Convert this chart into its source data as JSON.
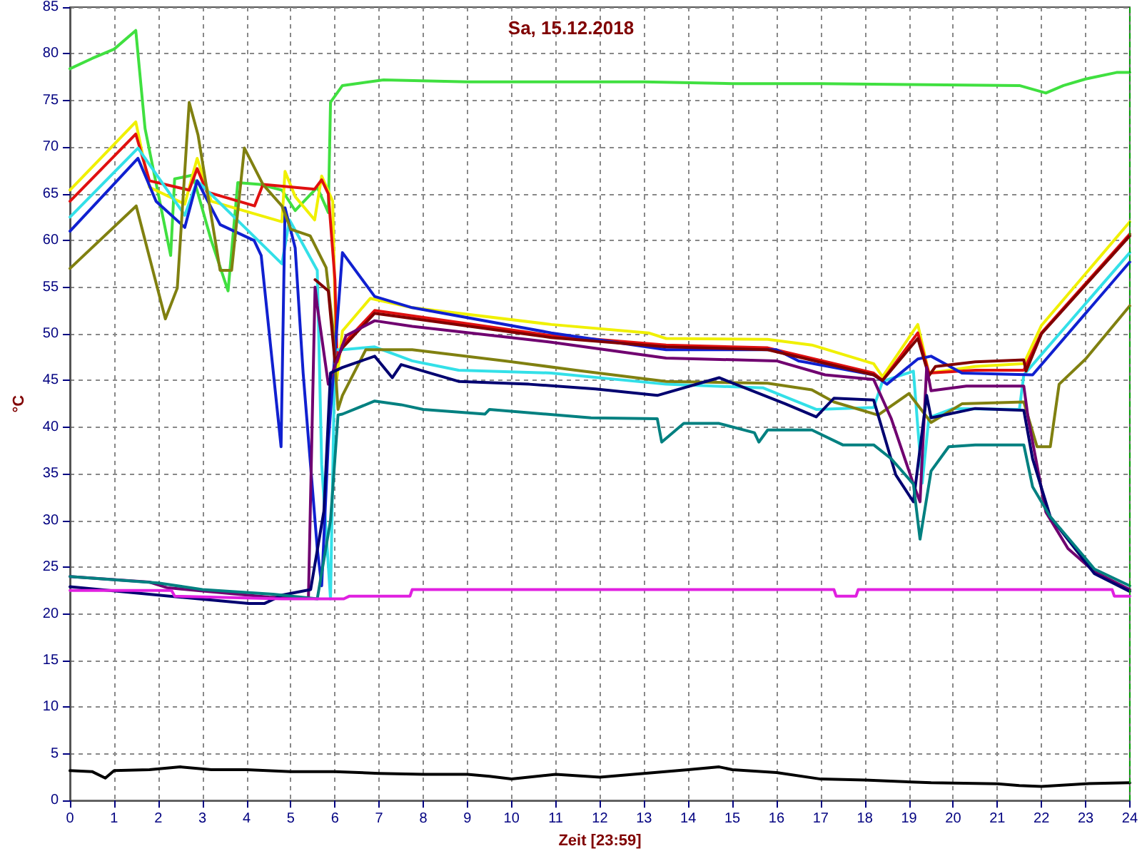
{
  "chart_data": {
    "type": "line",
    "title": "Sa, 15.12.2018",
    "xlabel": "Zeit [23:59]",
    "ylabel": "°C",
    "xlim": [
      0,
      24
    ],
    "xticks": [
      0,
      1,
      2,
      3,
      4,
      5,
      6,
      7,
      8,
      9,
      10,
      11,
      12,
      13,
      14,
      15,
      16,
      17,
      18,
      19,
      20,
      21,
      22,
      23,
      24
    ],
    "ylim": [
      0,
      85
    ],
    "yticks": [
      0,
      5,
      10,
      15,
      20,
      25,
      30,
      35,
      40,
      45,
      50,
      55,
      60,
      65,
      70,
      75,
      80,
      85
    ],
    "grid": true,
    "marker": "none",
    "line_style": "solid",
    "ref_lines": [
      {
        "axis": "x",
        "value": 24,
        "color": "#00a000",
        "line_style": "dashed"
      }
    ],
    "series": [
      {
        "color": "#40e040",
        "x": [
          0,
          0.5,
          1,
          1.49,
          1.7,
          2.28,
          2.37,
          2.78,
          3.2,
          3.58,
          3.8,
          4.3,
          4.8,
          5.1,
          5.6,
          5.85,
          5.9,
          6.17,
          7.1,
          9,
          11,
          13,
          15,
          17,
          19,
          21.5,
          22.1,
          22.5,
          23,
          23.7,
          24
        ],
        "values": [
          78.4,
          79.5,
          80.5,
          82.5,
          72,
          58.4,
          66.6,
          67,
          60,
          54.6,
          66.2,
          66,
          65.4,
          63.2,
          65.7,
          63,
          74.8,
          76.6,
          77.2,
          77,
          77,
          77,
          76.8,
          76.8,
          76.7,
          76.6,
          75.8,
          76.6,
          77.3,
          78,
          78
        ]
      },
      {
        "color": "#f0f000",
        "x": [
          0,
          1.49,
          1.8,
          2.6,
          2.88,
          3.2,
          4.8,
          4.87,
          5.1,
          5.54,
          5.7,
          5.95,
          6.04,
          6.17,
          6.8,
          7.75,
          10.9,
          13.1,
          13.5,
          15.8,
          16.8,
          18.2,
          18.4,
          19.2,
          19.45,
          20.5,
          21.6,
          22,
          24
        ],
        "values": [
          65.4,
          72.7,
          65.7,
          63.9,
          68.8,
          64.2,
          62,
          67.4,
          64.7,
          62.2,
          66.9,
          64.2,
          45,
          50.3,
          53.8,
          52.8,
          51,
          50.1,
          49.5,
          49.4,
          48.8,
          46.8,
          45.4,
          51,
          45.8,
          46.5,
          46.8,
          50.9,
          62
        ]
      },
      {
        "color": "#e01010",
        "x": [
          0,
          1.49,
          1.8,
          2.7,
          2.88,
          3.1,
          4.18,
          4.37,
          5.54,
          5.7,
          5.85,
          6,
          6.05,
          6.17,
          6.9,
          10.9,
          13.5,
          15.8,
          18.2,
          18.4,
          19.2,
          19.45,
          20.5,
          21.6,
          22,
          24
        ],
        "values": [
          64.2,
          71.4,
          66.4,
          65.4,
          67.7,
          65.2,
          63.7,
          66,
          65.5,
          66.5,
          65,
          55.8,
          47,
          48.8,
          52.5,
          49.8,
          48.8,
          48.5,
          45.8,
          45,
          50.1,
          45.8,
          46.1,
          46.1,
          50.1,
          60.7
        ]
      },
      {
        "color": "#33e0e8",
        "x": [
          0,
          1.54,
          2.6,
          2.88,
          4.8,
          4.97,
          5.6,
          5.7,
          5.9,
          6,
          6.17,
          6.9,
          7.75,
          8.8,
          10.9,
          13.5,
          15.7,
          16.9,
          18.2,
          18.4,
          19.1,
          19.3,
          19.45,
          20,
          21.5,
          21.6,
          24
        ],
        "values": [
          62.5,
          69.9,
          62.7,
          66.4,
          57.5,
          62.2,
          56.8,
          36,
          21.6,
          48.3,
          48.3,
          48.6,
          47.1,
          46.1,
          45.8,
          44.6,
          44.2,
          41.9,
          42.1,
          44.9,
          46,
          34,
          41,
          42,
          41.9,
          45.6,
          58.7
        ]
      },
      {
        "color": "#1020d0",
        "x": [
          0,
          1.54,
          1.95,
          2.6,
          2.88,
          3.4,
          4.17,
          4.33,
          4.78,
          4.87,
          5.1,
          5.28,
          5.6,
          5.7,
          5.85,
          6.17,
          6.9,
          7.75,
          10.9,
          13.5,
          16,
          16.5,
          18.2,
          18.5,
          19.2,
          19.5,
          20.2,
          21.8,
          24
        ],
        "values": [
          61,
          68.8,
          64.2,
          61.4,
          66.4,
          61.7,
          60,
          58.4,
          37.9,
          63.5,
          59.2,
          45.8,
          27,
          23,
          38.4,
          58.7,
          54,
          52.8,
          50.1,
          48.3,
          48.3,
          47.1,
          45.6,
          44.6,
          47.3,
          47.6,
          45.8,
          45.6,
          57.7
        ]
      },
      {
        "color": "#808010",
        "x": [
          0,
          1.5,
          2.16,
          2.43,
          2.7,
          2.9,
          3.4,
          3.66,
          3.95,
          4.37,
          4.8,
          5,
          5.44,
          5.8,
          5.95,
          6.07,
          6.17,
          6.7,
          7.75,
          9.85,
          11.45,
          13.5,
          15.8,
          16.8,
          17.3,
          18.3,
          19,
          19.5,
          20.2,
          21.6,
          21.9,
          22.2,
          22.4,
          23,
          24
        ],
        "values": [
          57,
          63.7,
          51.6,
          54.9,
          74.8,
          71.3,
          56.8,
          56.8,
          69.9,
          66,
          63.7,
          61.2,
          60.5,
          57.1,
          50.8,
          41.9,
          43.4,
          48.3,
          48.3,
          47.1,
          46.1,
          44.9,
          44.7,
          44,
          42.7,
          41.3,
          43.6,
          40.5,
          42.5,
          42.7,
          37.9,
          37.9,
          44.6,
          47.3,
          53
        ]
      },
      {
        "color": "#800000",
        "x": [
          5.55,
          5.85,
          6,
          6.17,
          6.9,
          10.9,
          13.5,
          15.8,
          18.2,
          18.4,
          19.2,
          19.45,
          19.6,
          20.5,
          21.6,
          21.65,
          22,
          24
        ],
        "values": [
          55.8,
          54.6,
          47,
          48.5,
          52.2,
          49.6,
          48.6,
          48.3,
          45.6,
          45,
          49.5,
          45.5,
          46.5,
          47,
          47.2,
          46,
          50,
          60.5
        ]
      },
      {
        "color": "#700070",
        "x": [
          0,
          1.8,
          2.2,
          4.5,
          5.4,
          5.55,
          5.6,
          5.85,
          6.25,
          6.9,
          7.75,
          10.9,
          13.5,
          16,
          17.1,
          18.2,
          18.6,
          19.1,
          19.25,
          19.4,
          19.5,
          20.3,
          21.6,
          21.7,
          22.1,
          22.6,
          23.2,
          24
        ],
        "values": [
          24,
          23.4,
          22.8,
          21.8,
          21.7,
          55,
          53,
          44.6,
          49.8,
          51.4,
          50.8,
          49.1,
          47.4,
          47.1,
          45.6,
          45.1,
          40.9,
          33.9,
          32,
          46.4,
          43.9,
          44.4,
          44.4,
          40.9,
          30.9,
          27,
          24.5,
          22.6
        ]
      },
      {
        "color": "#000070",
        "x": [
          0,
          4.05,
          4.4,
          4.8,
          5.45,
          5.75,
          5.9,
          6.17,
          6.9,
          7.3,
          7.5,
          8.8,
          10.4,
          11.9,
          13.3,
          14.7,
          16.2,
          16.9,
          17.3,
          18.2,
          18.7,
          19.1,
          19.4,
          19.5,
          20.5,
          21.6,
          21.8,
          22.2,
          23.2,
          24
        ],
        "values": [
          22.9,
          21.1,
          21.1,
          22,
          22.6,
          31,
          45.8,
          46.4,
          47.6,
          45.3,
          46.7,
          44.9,
          44.6,
          44.1,
          43.4,
          45.3,
          42.5,
          41.1,
          43.1,
          42.9,
          34.9,
          32,
          43.4,
          41,
          42,
          41.8,
          36.6,
          30.4,
          24.3,
          22.4
        ]
      },
      {
        "color": "#008080",
        "x": [
          0,
          2,
          3,
          4.6,
          5.6,
          5.9,
          6.07,
          6.17,
          6.9,
          7.5,
          8,
          9.4,
          9.5,
          11.8,
          13.3,
          13.4,
          13.9,
          14.7,
          15.5,
          15.6,
          15.8,
          16.8,
          17.5,
          18.2,
          18.6,
          19.1,
          19.25,
          19.5,
          19.9,
          20.5,
          21.6,
          21.8,
          22.2,
          23.2,
          24
        ],
        "values": [
          24,
          23.3,
          22.6,
          22.1,
          21.6,
          30,
          41.3,
          41.4,
          42.8,
          42.4,
          41.9,
          41.4,
          41.9,
          41,
          40.9,
          38.4,
          40.4,
          40.4,
          39.4,
          38.4,
          39.7,
          39.7,
          38.1,
          38.1,
          36.6,
          33.9,
          28,
          35.3,
          37.9,
          38.1,
          38.1,
          33.6,
          30.4,
          24.8,
          23
        ]
      },
      {
        "color": "#e020e0",
        "x": [
          0,
          2.3,
          2.37,
          4.8,
          6.2,
          6.33,
          7.7,
          7.75,
          17.3,
          17.35,
          17.8,
          17.85,
          23.6,
          23.65,
          24
        ],
        "values": [
          22.5,
          22.5,
          21.9,
          21.6,
          21.6,
          21.9,
          21.9,
          22.6,
          22.6,
          21.9,
          21.9,
          22.6,
          22.6,
          21.9,
          21.9
        ]
      },
      {
        "color": "#000000",
        "x": [
          0,
          0.5,
          0.8,
          1,
          1.8,
          2.5,
          3.2,
          4,
          5,
          6,
          7,
          8,
          9,
          9.5,
          10,
          11,
          12,
          13,
          14,
          14.7,
          15,
          16,
          17,
          18,
          19.5,
          21,
          21.5,
          22,
          23,
          24
        ],
        "values": [
          3.2,
          3.1,
          2.4,
          3.2,
          3.3,
          3.6,
          3.3,
          3.3,
          3.1,
          3.1,
          2.9,
          2.8,
          2.8,
          2.6,
          2.3,
          2.8,
          2.5,
          2.9,
          3.3,
          3.6,
          3.3,
          3,
          2.3,
          2.2,
          1.9,
          1.8,
          1.6,
          1.5,
          1.8,
          1.9
        ]
      }
    ]
  }
}
